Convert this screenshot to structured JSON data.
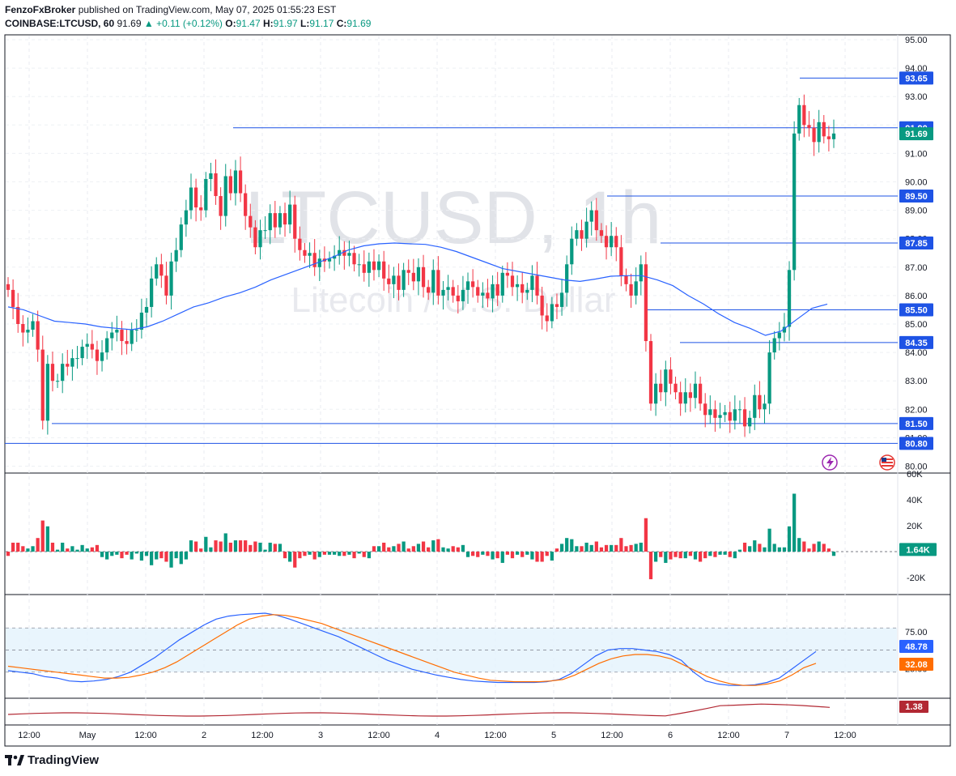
{
  "header": {
    "author": "FenzoFxBroker",
    "published": "published on TradingView.com, May 07, 2025 01:55:23 EST",
    "symbol": "COINBASE:LTCUSD, 60",
    "last": "91.69",
    "change": "+0.11 (+0.12%)",
    "open_label": "O:",
    "open": "91.47",
    "high_label": "H:",
    "high": "91.97",
    "low_label": "L:",
    "low": "91.17",
    "close_label": "C:",
    "close": "91.69"
  },
  "watermark": {
    "symbol": "LTCUSD, 1h",
    "description": "Litecoin / U.S. Dollar"
  },
  "footer": {
    "brand": "TradingView"
  },
  "colors": {
    "up": "#089981",
    "down": "#f23645",
    "line": "#1e53e5",
    "ma": "#2962ff",
    "stoch_d": "#ff6d00",
    "bottom": "#b22833"
  },
  "chart_data": [
    {
      "type": "candlestick",
      "title": "LTCUSD, 1h",
      "ylim": [
        80,
        95
      ],
      "price_axis": [
        "95.00",
        "94.00",
        "93.00",
        "92.00",
        "91.00",
        "90.00",
        "89.00",
        "88.00",
        "87.00",
        "86.00",
        "85.00",
        "84.00",
        "83.00",
        "82.00",
        "81.00",
        "80.00"
      ],
      "time_axis": [
        "12:00",
        "May",
        "12:00",
        "2",
        "12:00",
        "3",
        "12:00",
        "4",
        "12:00",
        "5",
        "12:00",
        "6",
        "12:00",
        "7",
        "12:00"
      ],
      "levels": [
        {
          "label": "93.65",
          "value": 93.65
        },
        {
          "label": "91.90",
          "value": 91.9
        },
        {
          "label": "89.50",
          "value": 89.5
        },
        {
          "label": "87.85",
          "value": 87.85
        },
        {
          "label": "85.50",
          "value": 85.5
        },
        {
          "label": "84.35",
          "value": 84.35
        },
        {
          "label": "81.50",
          "value": 81.5
        },
        {
          "label": "80.80",
          "value": 80.8
        }
      ],
      "last_price": {
        "label": "91.69",
        "value": 91.69
      },
      "closes": [
        86.2,
        85.6,
        85.0,
        84.7,
        84.8,
        85.1,
        84.1,
        81.6,
        83.6,
        83.0,
        83.0,
        83.6,
        83.5,
        83.8,
        83.8,
        84.2,
        84.3,
        84.1,
        83.7,
        84.0,
        84.5,
        84.7,
        84.8,
        84.4,
        84.3,
        84.8,
        84.8,
        85.4,
        85.6,
        86.6,
        87.1,
        86.7,
        86.0,
        87.2,
        87.6,
        88.5,
        89.0,
        89.8,
        89.1,
        89.0,
        90.1,
        90.3,
        89.5,
        88.8,
        90.2,
        89.6,
        90.4,
        89.6,
        88.8,
        88.4,
        87.7,
        88.3,
        88.3,
        88.9,
        88.4,
        88.9,
        88.5,
        89.2,
        88.0,
        87.6,
        87.4,
        87.5,
        87.0,
        87.3,
        87.2,
        87.3,
        87.4,
        87.6,
        87.4,
        87.5,
        87.1,
        87.1,
        86.8,
        87.2,
        86.9,
        87.2,
        86.6,
        86.4,
        86.7,
        86.2,
        86.9,
        86.8,
        86.5,
        87.0,
        86.3,
        86.1,
        86.9,
        86.0,
        86.2,
        86.3,
        86.0,
        85.8,
        86.2,
        86.5,
        86.3,
        86.0,
        86.1,
        85.9,
        86.4,
        86.0,
        86.8,
        86.7,
        86.3,
        86.4,
        86.1,
        86.2,
        86.7,
        86.0,
        85.3,
        85.1,
        85.7,
        85.6,
        86.1,
        87.1,
        88.0,
        88.3,
        88.0,
        88.6,
        89.0,
        88.3,
        88.1,
        87.7,
        88.1,
        87.7,
        86.7,
        86.4,
        86.0,
        86.5,
        87.1,
        84.4,
        82.2,
        82.9,
        82.6,
        83.4,
        82.9,
        82.6,
        82.2,
        82.6,
        82.4,
        82.9,
        82.2,
        81.8,
        82.0,
        81.7,
        81.8,
        81.9,
        81.6,
        82.0,
        82.0,
        81.4,
        81.7,
        82.5,
        82.0,
        82.2,
        84.0,
        84.5,
        84.7,
        84.9,
        86.9,
        91.7,
        92.7,
        92.0,
        91.9,
        91.4,
        92.1,
        91.6,
        91.5,
        91.7
      ],
      "ma": [
        85.6,
        85.5,
        85.3,
        85.1,
        85.05,
        85.0,
        84.9,
        84.85,
        84.8,
        84.9,
        85.1,
        85.35,
        85.6,
        85.75,
        85.95,
        86.1,
        86.3,
        86.55,
        86.75,
        86.95,
        87.15,
        87.35,
        87.6,
        87.75,
        87.82,
        87.85,
        87.82,
        87.8,
        87.7,
        87.55,
        87.35,
        87.15,
        86.95,
        86.85,
        86.75,
        86.65,
        86.55,
        86.5,
        86.58,
        86.68,
        86.7,
        86.7,
        86.55,
        86.35,
        86.0,
        85.7,
        85.35,
        85.05,
        84.85,
        84.6,
        84.75,
        85.15,
        85.55,
        85.7
      ]
    },
    {
      "type": "bar",
      "title": "Volume",
      "ylim": [
        -30000,
        60000
      ],
      "axis": [
        "60K",
        "40K",
        "20K",
        "-20K"
      ],
      "last": {
        "label": "1.64K",
        "value": 1640
      }
    },
    {
      "type": "line",
      "title": "Stochastic RSI",
      "ylim": [
        0,
        100
      ],
      "axis": [
        "75.00",
        "25.00"
      ],
      "series": [
        {
          "color": "#2962ff",
          "last": "48.78",
          "values": [
            22,
            20,
            18,
            14,
            12,
            8,
            7,
            8,
            10,
            14,
            20,
            30,
            40,
            52,
            64,
            74,
            84,
            92,
            96,
            98,
            99,
            100,
            97,
            92,
            86,
            80,
            74,
            68,
            60,
            52,
            44,
            36,
            30,
            24,
            20,
            16,
            13,
            10,
            8,
            7,
            6,
            6,
            6,
            6,
            7,
            10,
            18,
            30,
            42,
            50,
            52,
            52,
            50,
            48,
            44,
            36,
            20,
            8,
            4,
            2,
            2,
            3,
            6,
            12,
            24,
            36,
            48
          ]
        },
        {
          "color": "#ff6d00",
          "last": "32.08",
          "values": [
            28,
            26,
            24,
            22,
            20,
            18,
            16,
            14,
            12,
            12,
            13,
            16,
            20,
            26,
            34,
            44,
            54,
            64,
            74,
            84,
            92,
            96,
            98,
            97,
            94,
            90,
            86,
            80,
            74,
            68,
            62,
            56,
            50,
            44,
            38,
            32,
            26,
            20,
            16,
            12,
            9,
            8,
            7,
            7,
            7,
            8,
            10,
            16,
            24,
            32,
            38,
            42,
            44,
            44,
            42,
            38,
            30,
            22,
            14,
            8,
            4,
            2,
            2,
            4,
            8,
            16,
            26,
            32
          ]
        }
      ]
    },
    {
      "type": "line",
      "title": "Indicator",
      "series": [
        {
          "color": "#b22833",
          "last": "1.38"
        }
      ]
    }
  ]
}
